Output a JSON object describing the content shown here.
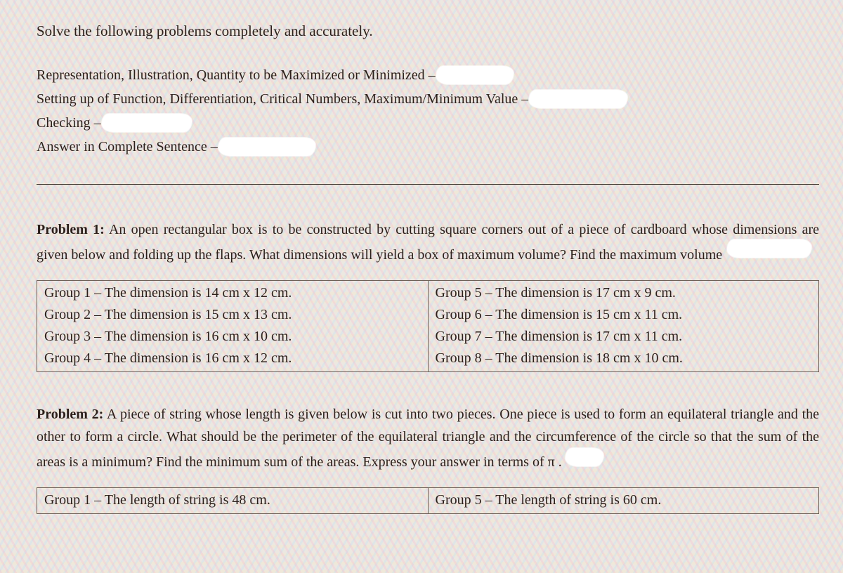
{
  "colors": {
    "text": "#2b1f1a",
    "background_base": "#ece8e1",
    "hatch_pink": "rgba(255,170,200,0.22)",
    "hatch_blue": "rgba(170,220,255,0.22)",
    "hatch_yellow": "rgba(255,235,180,0.18)",
    "border": "#6e6158",
    "rule": "#3a322c",
    "whiteout": "#ffffff"
  },
  "typography": {
    "font_family": "Georgia / serif",
    "body_size_pt": 15,
    "line_height": 1.6
  },
  "instruction": "Solve the following problems completely and accurately.",
  "criteria": {
    "line1_prefix": "Representation, Illustration, Quantity to be Maximized or Minimized – ",
    "line2_prefix": "Setting up of Function, Differentiation, Critical Numbers, Maximum/Minimum Value – ",
    "line3_prefix": "Checking – ",
    "line4_prefix": "Answer in Complete Sentence – "
  },
  "problem1": {
    "label": "Problem 1:",
    "text": " An open rectangular box is to be constructed by cutting square corners out of a piece of cardboard whose dimensions are given below and folding up the flaps. What dimensions will yield a box of maximum volume? Find the maximum volume",
    "table": {
      "left": [
        "Group 1 – The dimension is 14 cm x 12 cm.",
        "Group 2 – The dimension is 15 cm x 13 cm.",
        "Group 3 – The dimension is 16 cm x 10 cm.",
        "Group 4 – The dimension is 16 cm x 12 cm."
      ],
      "right": [
        "Group 5 – The dimension is 17 cm x 9 cm.",
        "Group 6 – The dimension is 15 cm x 11 cm.",
        "Group 7 – The dimension is 17 cm x 11 cm.",
        "Group 8 – The dimension is 18 cm x 10 cm."
      ]
    }
  },
  "problem2": {
    "label": "Problem 2:",
    "text": " A piece of string whose length is given below is cut into two pieces. One piece is used to form an equilateral triangle and the other to form a circle. What should be the perimeter of the equilateral triangle and the circumference of the circle so that the sum of the areas is a minimum? Find the minimum sum of the areas. Express your answer in terms of ",
    "pi": "π",
    "period": " .",
    "table": {
      "left": "Group 1 – The length of string is 48 cm.",
      "right": "Group 5 – The length of string is 60 cm."
    }
  }
}
